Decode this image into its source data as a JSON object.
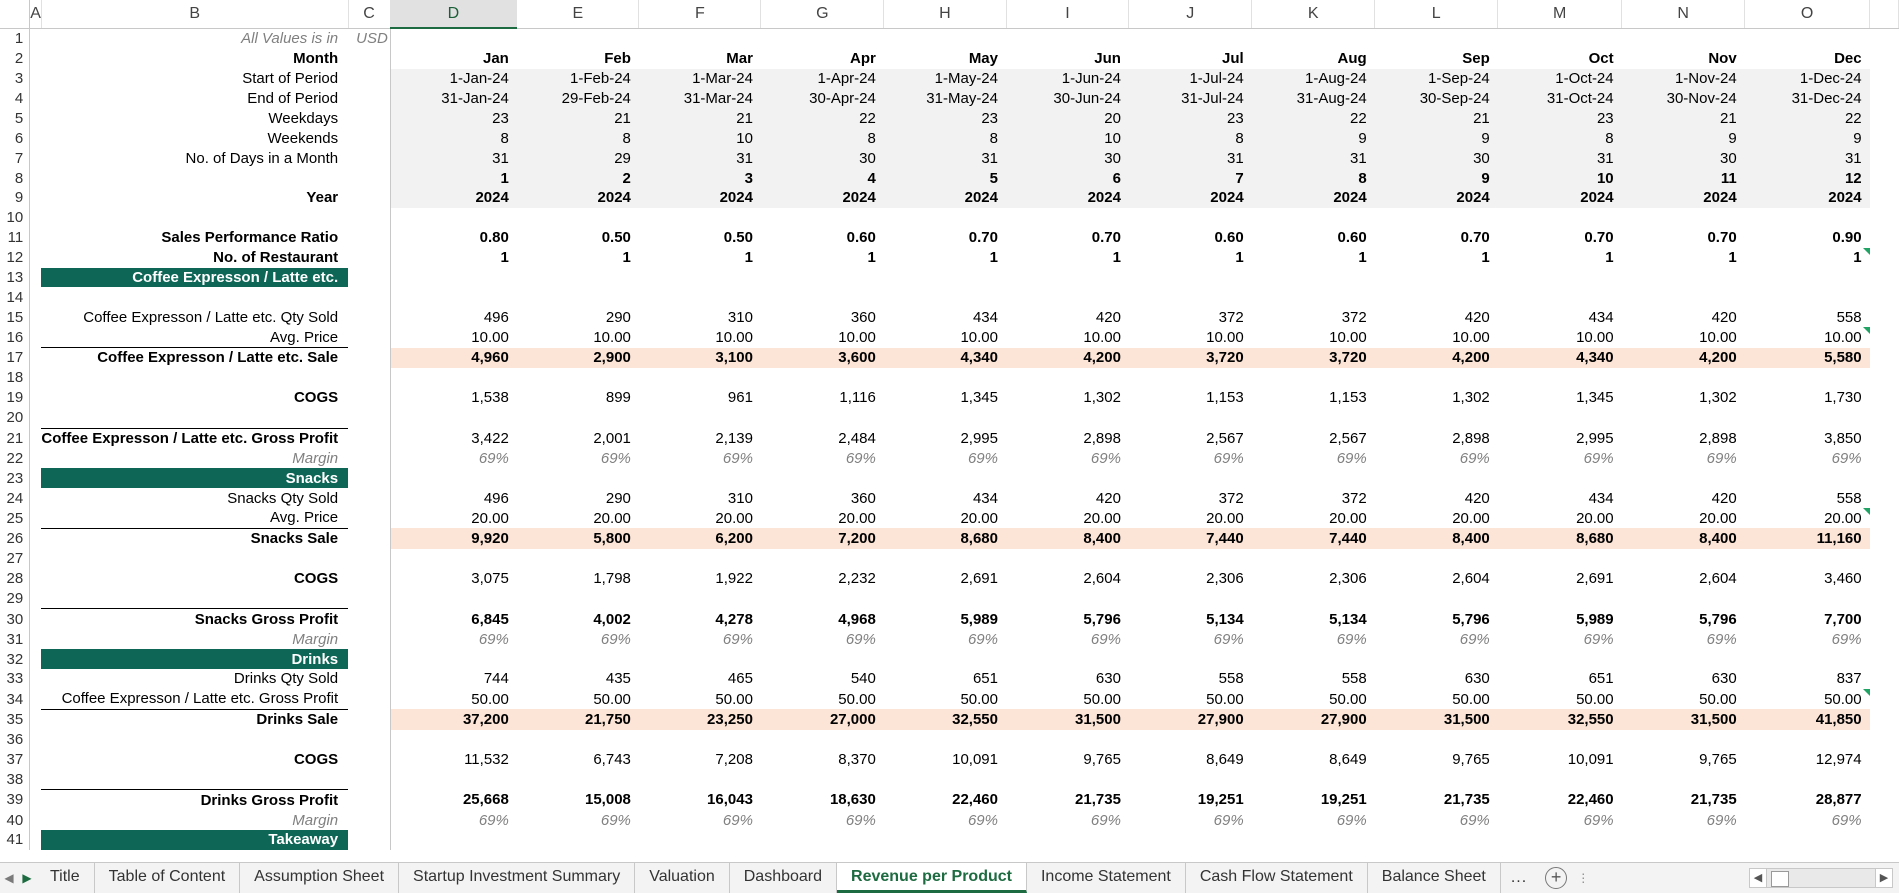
{
  "columns": [
    "A",
    "B",
    "C",
    "D",
    "E",
    "F",
    "G",
    "H",
    "I",
    "J",
    "K",
    "L",
    "M",
    "N",
    "O"
  ],
  "selected_column": "D",
  "units_note": {
    "label": "All Values is in",
    "unit": "USD"
  },
  "header_rows": [
    {
      "row": 2,
      "label": "Month",
      "style": "bold",
      "values": [
        "Jan",
        "Feb",
        "Mar",
        "Apr",
        "May",
        "Jun",
        "Jul",
        "Aug",
        "Sep",
        "Oct",
        "Nov",
        "Dec"
      ]
    },
    {
      "row": 3,
      "label": "Start of Period",
      "style": "",
      "values": [
        "1-Jan-24",
        "1-Feb-24",
        "1-Mar-24",
        "1-Apr-24",
        "1-May-24",
        "1-Jun-24",
        "1-Jul-24",
        "1-Aug-24",
        "1-Sep-24",
        "1-Oct-24",
        "1-Nov-24",
        "1-Dec-24"
      ]
    },
    {
      "row": 4,
      "label": "End of Period",
      "style": "",
      "values": [
        "31-Jan-24",
        "29-Feb-24",
        "31-Mar-24",
        "30-Apr-24",
        "31-May-24",
        "30-Jun-24",
        "31-Jul-24",
        "31-Aug-24",
        "30-Sep-24",
        "31-Oct-24",
        "30-Nov-24",
        "31-Dec-24"
      ]
    },
    {
      "row": 5,
      "label": "Weekdays",
      "style": "",
      "values": [
        "23",
        "21",
        "21",
        "22",
        "23",
        "20",
        "23",
        "22",
        "21",
        "23",
        "21",
        "22"
      ]
    },
    {
      "row": 6,
      "label": "Weekends",
      "style": "",
      "values": [
        "8",
        "8",
        "10",
        "8",
        "8",
        "10",
        "8",
        "9",
        "9",
        "8",
        "9",
        "9"
      ]
    },
    {
      "row": 7,
      "label": "No. of Days in a Month",
      "style": "",
      "values": [
        "31",
        "29",
        "31",
        "30",
        "31",
        "30",
        "31",
        "31",
        "30",
        "31",
        "30",
        "31"
      ]
    },
    {
      "row": 8,
      "label": "",
      "style": "bold",
      "values": [
        "1",
        "2",
        "3",
        "4",
        "5",
        "6",
        "7",
        "8",
        "9",
        "10",
        "11",
        "12"
      ]
    },
    {
      "row": 9,
      "label": "Year",
      "style": "bold",
      "values": [
        "2024",
        "2024",
        "2024",
        "2024",
        "2024",
        "2024",
        "2024",
        "2024",
        "2024",
        "2024",
        "2024",
        "2024"
      ]
    }
  ],
  "rows": [
    {
      "row": 10,
      "type": "blank"
    },
    {
      "row": 11,
      "type": "data",
      "label": "Sales Performance Ratio",
      "style": "bold",
      "values": [
        "0.80",
        "0.50",
        "0.50",
        "0.60",
        "0.70",
        "0.70",
        "0.60",
        "0.60",
        "0.70",
        "0.70",
        "0.70",
        "0.90"
      ]
    },
    {
      "row": 12,
      "type": "data",
      "label": "No. of Restaurant",
      "style": "bold",
      "values": [
        "1",
        "1",
        "1",
        "1",
        "1",
        "1",
        "1",
        "1",
        "1",
        "1",
        "1",
        "1"
      ],
      "flag": true
    },
    {
      "row": 13,
      "type": "section",
      "label": "Coffee Expresson / Latte etc."
    },
    {
      "row": 14,
      "type": "blank"
    },
    {
      "row": 15,
      "type": "data",
      "label": "Coffee Expresson / Latte etc. Qty Sold",
      "style": "",
      "values": [
        "496",
        "290",
        "310",
        "360",
        "434",
        "420",
        "372",
        "372",
        "420",
        "434",
        "420",
        "558"
      ]
    },
    {
      "row": 16,
      "type": "data",
      "label": "Avg. Price",
      "style": "",
      "values": [
        "10.00",
        "10.00",
        "10.00",
        "10.00",
        "10.00",
        "10.00",
        "10.00",
        "10.00",
        "10.00",
        "10.00",
        "10.00",
        "10.00"
      ],
      "flag": true
    },
    {
      "row": 17,
      "type": "data",
      "label": "Coffee Expresson / Latte etc. Sale",
      "style": "bold",
      "pink": true,
      "topline": true,
      "values": [
        "4,960",
        "2,900",
        "3,100",
        "3,600",
        "4,340",
        "4,200",
        "3,720",
        "3,720",
        "4,200",
        "4,340",
        "4,200",
        "5,580"
      ]
    },
    {
      "row": 18,
      "type": "blank"
    },
    {
      "row": 19,
      "type": "data",
      "label": "COGS",
      "style": "bold",
      "values": [
        "1,538",
        "899",
        "961",
        "1,116",
        "1,345",
        "1,302",
        "1,153",
        "1,153",
        "1,302",
        "1,345",
        "1,302",
        "1,730"
      ],
      "valstyle": ""
    },
    {
      "row": 20,
      "type": "blank"
    },
    {
      "row": 21,
      "type": "data",
      "label": "Coffee Expresson / Latte etc. Gross Profit",
      "style": "bold",
      "topline": true,
      "values": [
        "3,422",
        "2,001",
        "2,139",
        "2,484",
        "2,995",
        "2,898",
        "2,567",
        "2,567",
        "2,898",
        "2,995",
        "2,898",
        "3,850"
      ],
      "valstyle": ""
    },
    {
      "row": 22,
      "type": "data",
      "label": "Margin",
      "style": "ital",
      "values": [
        "69%",
        "69%",
        "69%",
        "69%",
        "69%",
        "69%",
        "69%",
        "69%",
        "69%",
        "69%",
        "69%",
        "69%"
      ]
    },
    {
      "row": 23,
      "type": "section",
      "label": "Snacks"
    },
    {
      "row": 24,
      "type": "data",
      "label": "Snacks  Qty Sold",
      "style": "",
      "values": [
        "496",
        "290",
        "310",
        "360",
        "434",
        "420",
        "372",
        "372",
        "420",
        "434",
        "420",
        "558"
      ]
    },
    {
      "row": 25,
      "type": "data",
      "label": "Avg. Price",
      "style": "",
      "values": [
        "20.00",
        "20.00",
        "20.00",
        "20.00",
        "20.00",
        "20.00",
        "20.00",
        "20.00",
        "20.00",
        "20.00",
        "20.00",
        "20.00"
      ],
      "flag": true
    },
    {
      "row": 26,
      "type": "data",
      "label": "Snacks  Sale",
      "style": "bold",
      "pink": true,
      "topline": true,
      "values": [
        "9,920",
        "5,800",
        "6,200",
        "7,200",
        "8,680",
        "8,400",
        "7,440",
        "7,440",
        "8,400",
        "8,680",
        "8,400",
        "11,160"
      ]
    },
    {
      "row": 27,
      "type": "blank"
    },
    {
      "row": 28,
      "type": "data",
      "label": "COGS",
      "style": "bold",
      "values": [
        "3,075",
        "1,798",
        "1,922",
        "2,232",
        "2,691",
        "2,604",
        "2,306",
        "2,306",
        "2,604",
        "2,691",
        "2,604",
        "3,460"
      ],
      "valstyle": ""
    },
    {
      "row": 29,
      "type": "blank"
    },
    {
      "row": 30,
      "type": "data",
      "label": "Snacks  Gross Profit",
      "style": "bold",
      "topline": true,
      "values": [
        "6,845",
        "4,002",
        "4,278",
        "4,968",
        "5,989",
        "5,796",
        "5,134",
        "5,134",
        "5,796",
        "5,989",
        "5,796",
        "7,700"
      ]
    },
    {
      "row": 31,
      "type": "data",
      "label": "Margin",
      "style": "ital",
      "values": [
        "69%",
        "69%",
        "69%",
        "69%",
        "69%",
        "69%",
        "69%",
        "69%",
        "69%",
        "69%",
        "69%",
        "69%"
      ]
    },
    {
      "row": 32,
      "type": "section",
      "label": "Drinks"
    },
    {
      "row": 33,
      "type": "data",
      "label": "Drinks Qty Sold",
      "style": "",
      "values": [
        "744",
        "435",
        "465",
        "540",
        "651",
        "630",
        "558",
        "558",
        "630",
        "651",
        "630",
        "837"
      ]
    },
    {
      "row": 34,
      "type": "data",
      "label": "Coffee Expresson / Latte etc. Gross Profit",
      "style": "",
      "values": [
        "50.00",
        "50.00",
        "50.00",
        "50.00",
        "50.00",
        "50.00",
        "50.00",
        "50.00",
        "50.00",
        "50.00",
        "50.00",
        "50.00"
      ],
      "flag": true
    },
    {
      "row": 35,
      "type": "data",
      "label": "Drinks Sale",
      "style": "bold",
      "pink": true,
      "topline": true,
      "values": [
        "37,200",
        "21,750",
        "23,250",
        "27,000",
        "32,550",
        "31,500",
        "27,900",
        "27,900",
        "31,500",
        "32,550",
        "31,500",
        "41,850"
      ]
    },
    {
      "row": 36,
      "type": "blank"
    },
    {
      "row": 37,
      "type": "data",
      "label": "COGS",
      "style": "bold",
      "values": [
        "11,532",
        "6,743",
        "7,208",
        "8,370",
        "10,091",
        "9,765",
        "8,649",
        "8,649",
        "9,765",
        "10,091",
        "9,765",
        "12,974"
      ],
      "valstyle": ""
    },
    {
      "row": 38,
      "type": "blank"
    },
    {
      "row": 39,
      "type": "data",
      "label": "Drinks Gross Profit",
      "style": "bold",
      "topline": true,
      "values": [
        "25,668",
        "15,008",
        "16,043",
        "18,630",
        "22,460",
        "21,735",
        "19,251",
        "19,251",
        "21,735",
        "22,460",
        "21,735",
        "28,877"
      ]
    },
    {
      "row": 40,
      "type": "data",
      "label": "Margin",
      "style": "ital",
      "values": [
        "69%",
        "69%",
        "69%",
        "69%",
        "69%",
        "69%",
        "69%",
        "69%",
        "69%",
        "69%",
        "69%",
        "69%"
      ]
    },
    {
      "row": 41,
      "type": "section",
      "label": "Takeaway"
    }
  ],
  "tabs": [
    "Title",
    "Table of Content",
    "Assumption Sheet",
    "Startup Investment Summary",
    "Valuation",
    "Dashboard",
    "Revenue per Product",
    "Income Statement",
    "Cash Flow Statement",
    "Balance Sheet"
  ],
  "active_tab": "Revenue per Product",
  "more_tabs": "...",
  "add_sheet": "+"
}
